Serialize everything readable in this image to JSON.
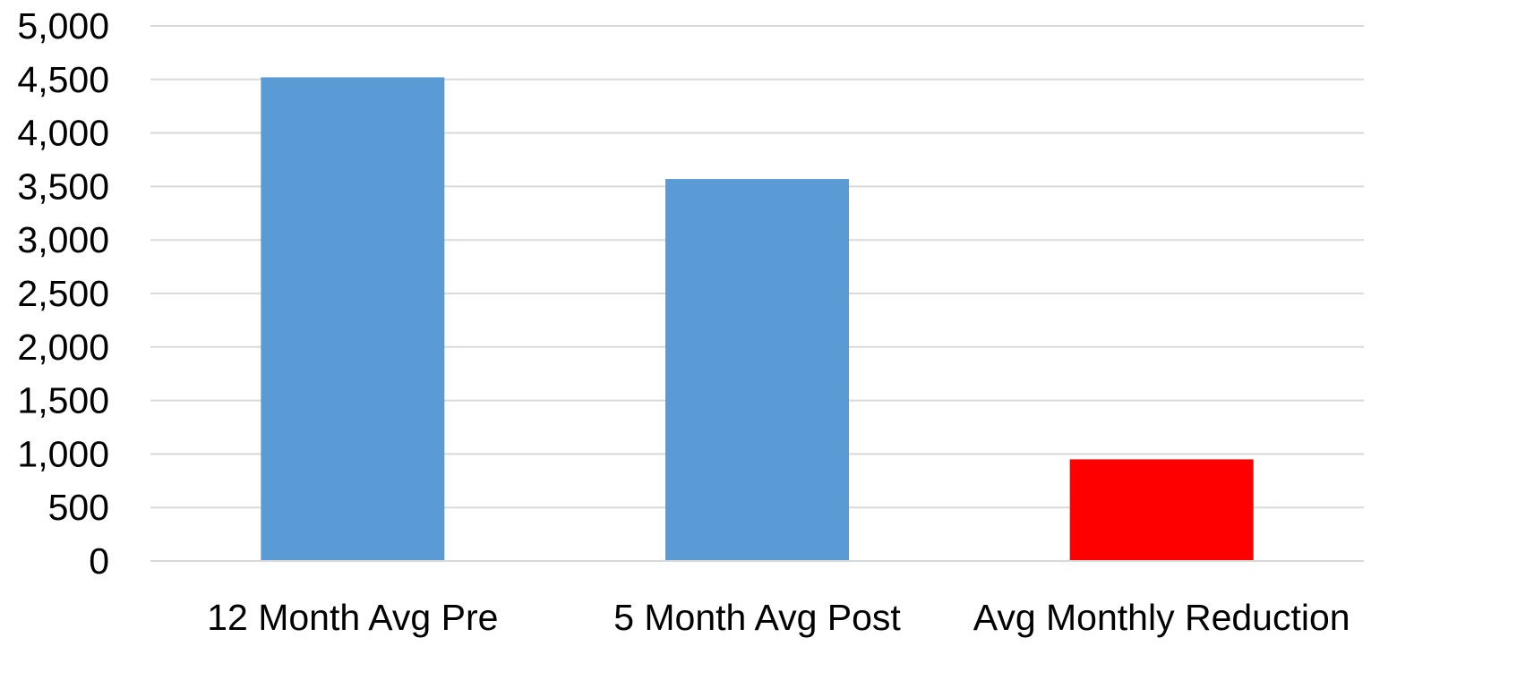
{
  "chart_data": {
    "type": "bar",
    "categories": [
      "12 Month Avg Pre",
      "5 Month Avg Post",
      "Avg Monthly Reduction"
    ],
    "values": [
      4520,
      3570,
      950
    ],
    "bar_colors": [
      "#5b9bd5",
      "#5b9bd5",
      "#ff0000"
    ],
    "title": "",
    "xlabel": "",
    "ylabel": "",
    "ylim": [
      0,
      5000
    ],
    "yticks": [
      0,
      500,
      1000,
      1500,
      2000,
      2500,
      3000,
      3500,
      4000,
      4500,
      5000
    ],
    "ytick_labels": [
      "0",
      "500",
      "1,000",
      "1,500",
      "2,000",
      "2,500",
      "3,000",
      "3,500",
      "4,000",
      "4,500",
      "5,000"
    ],
    "grid": true,
    "legend": "none"
  }
}
